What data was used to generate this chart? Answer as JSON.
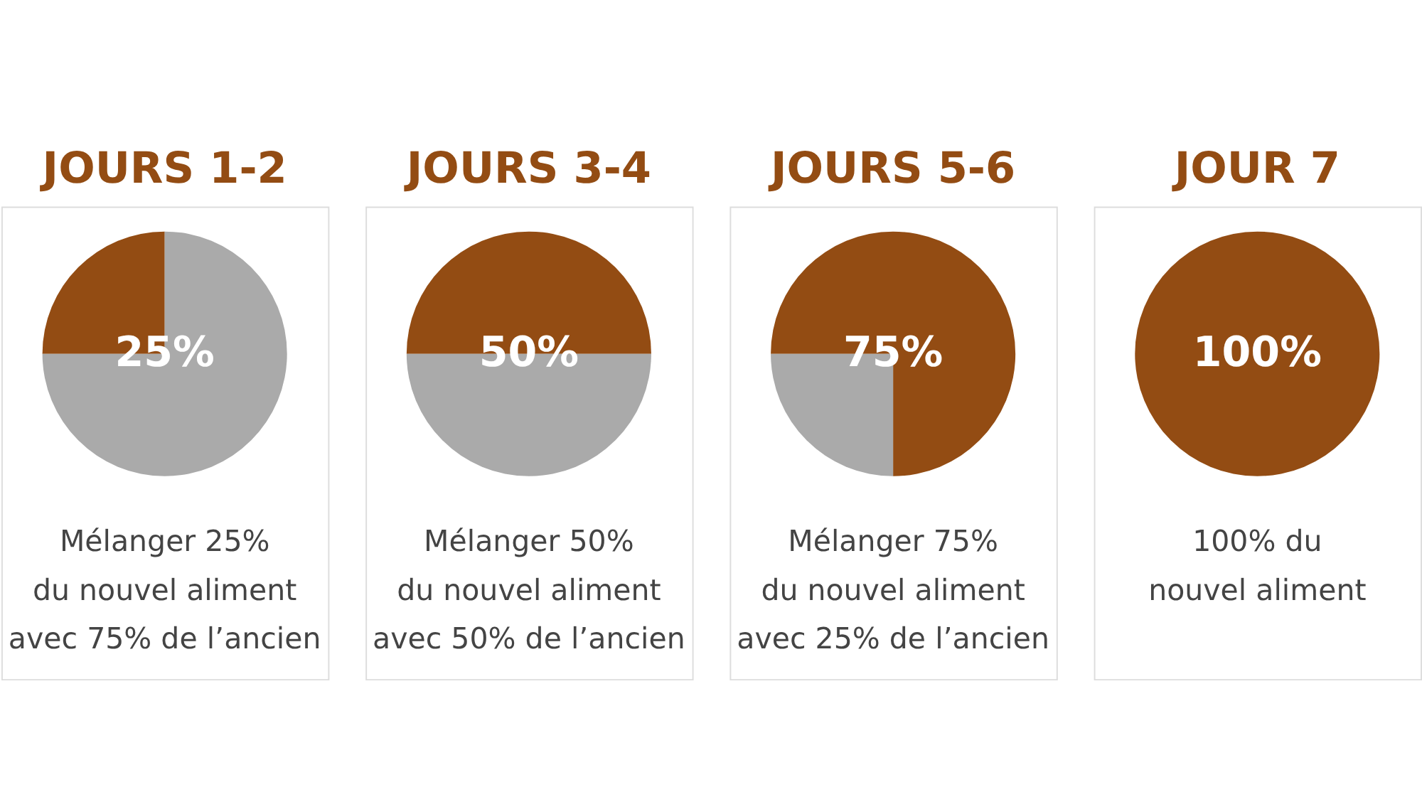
{
  "chart_data": [
    {
      "type": "pie",
      "title": "JOURS 1-2",
      "categories": [
        null,
        null
      ],
      "values": [
        25,
        75
      ],
      "colors": [
        "#934c13",
        "#aaaaaa"
      ],
      "value_labels": [
        "25%",
        null
      ],
      "annotations": [
        "Mélanger 25%\ndu nouvel aliment\navec 75% de l’ancien"
      ]
    },
    {
      "type": "pie",
      "title": "JOURS 3-4",
      "categories": [
        null,
        null
      ],
      "values": [
        50,
        50
      ],
      "colors": [
        "#934c13",
        "#aaaaaa"
      ],
      "value_labels": [
        "50%",
        null
      ],
      "annotations": [
        "Mélanger 50%\ndu nouvel aliment\navec 50% de l’ancien"
      ]
    },
    {
      "type": "pie",
      "title": "JOURS 5-6",
      "categories": [
        null,
        null
      ],
      "values": [
        75,
        25
      ],
      "colors": [
        "#934c13",
        "#aaaaaa"
      ],
      "value_labels": [
        "75%",
        null
      ],
      "annotations": [
        "Mélanger 75%\ndu nouvel aliment\navec 25% de l’ancien"
      ]
    },
    {
      "type": "pie",
      "title": "JOUR 7",
      "categories": [
        null
      ],
      "values": [
        100
      ],
      "colors": [
        "#934c13"
      ],
      "value_labels": [
        "100%"
      ],
      "annotations": [
        "100% du\nnouvel aliment"
      ]
    }
  ]
}
